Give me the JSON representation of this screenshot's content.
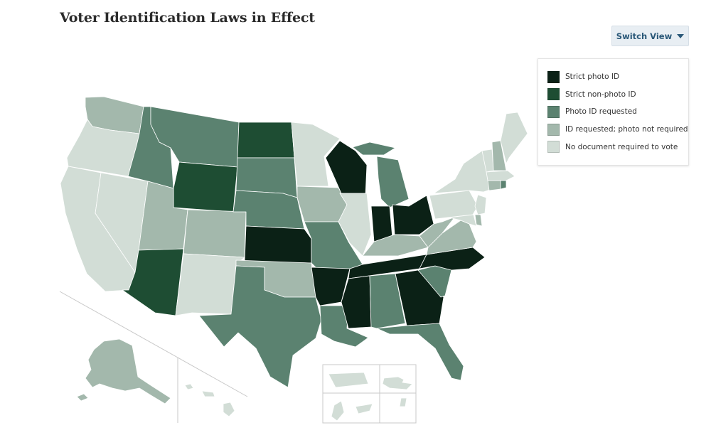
{
  "title": "Voter Identification Laws in Effect",
  "switch_view": {
    "label": "Switch View",
    "icon": "caret-down-icon"
  },
  "legend": [
    {
      "key": "strict_photo",
      "label": "Strict photo ID",
      "color": "#0b2116"
    },
    {
      "key": "strict_nonphoto",
      "label": "Strict non-photo ID",
      "color": "#1e4d33"
    },
    {
      "key": "photo_requested",
      "label": "Photo ID requested",
      "color": "#5b8270"
    },
    {
      "key": "id_requested",
      "label": "ID requested; photo not required",
      "color": "#a3b8ac"
    },
    {
      "key": "none",
      "label": "No document required to vote",
      "color": "#d2ddd6"
    }
  ],
  "states": {
    "WA": "id_requested",
    "OR": "none",
    "CA": "none",
    "NV": "none",
    "ID": "photo_requested",
    "MT": "photo_requested",
    "WY": "strict_nonphoto",
    "UT": "id_requested",
    "AZ": "strict_nonphoto",
    "CO": "id_requested",
    "NM": "none",
    "ND": "strict_nonphoto",
    "SD": "photo_requested",
    "NE": "photo_requested",
    "KS": "strict_photo",
    "OK": "id_requested",
    "TX": "photo_requested",
    "MN": "none",
    "IA": "id_requested",
    "MO": "photo_requested",
    "AR": "strict_photo",
    "LA": "photo_requested",
    "WI": "strict_photo",
    "IL": "none",
    "MI": "photo_requested",
    "IN": "strict_photo",
    "OH": "strict_photo",
    "KY": "id_requested",
    "TN": "strict_photo",
    "MS": "strict_photo",
    "AL": "photo_requested",
    "GA": "strict_photo",
    "FL": "photo_requested",
    "SC": "photo_requested",
    "NC": "strict_photo",
    "VA": "id_requested",
    "WV": "id_requested",
    "PA": "none",
    "NY": "none",
    "VT": "none",
    "NH": "id_requested",
    "ME": "none",
    "MA": "none",
    "CT": "id_requested",
    "RI": "photo_requested",
    "NJ": "none",
    "DE": "id_requested",
    "MD": "none",
    "AK": "id_requested",
    "HI": "none",
    "PR": "none",
    "VI": "none",
    "GU": "none",
    "MP": "none",
    "AS": "none"
  }
}
